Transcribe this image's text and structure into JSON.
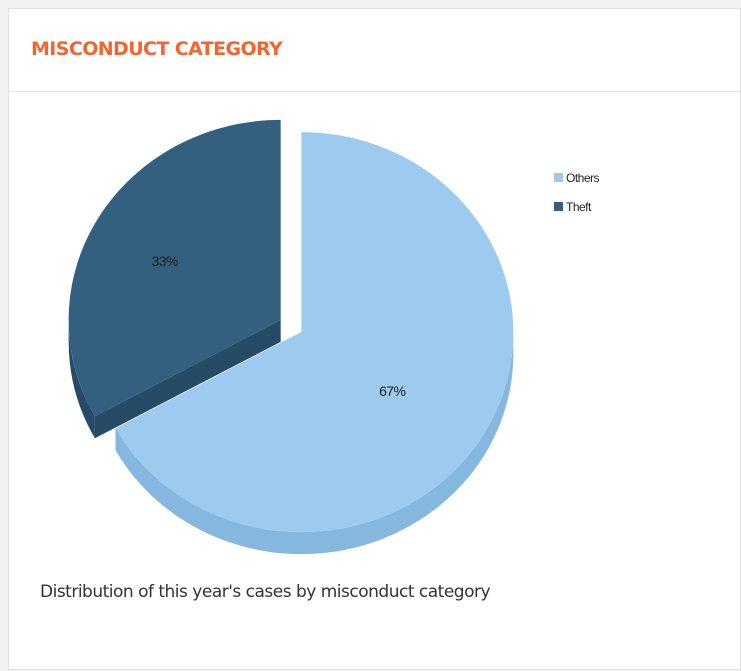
{
  "card": {
    "title": "MISCONDUCT CATEGORY",
    "caption": "Distribution of this year's cases by misconduct category"
  },
  "colors": {
    "title": "#f26531",
    "others": "#9dcbef",
    "others_side": "#86b7de",
    "theft": "#33607f",
    "theft_side": "#254b67"
  },
  "chart_data": {
    "type": "pie",
    "style": "3d-exploded",
    "legend_position": "top-right",
    "slices": [
      {
        "label": "Others",
        "value": 67,
        "display": "67%",
        "color": "#9dcbef",
        "side_color": "#86b7de"
      },
      {
        "label": "Theft",
        "value": 33,
        "display": "33%",
        "color": "#33607f",
        "side_color": "#254b67"
      }
    ]
  }
}
